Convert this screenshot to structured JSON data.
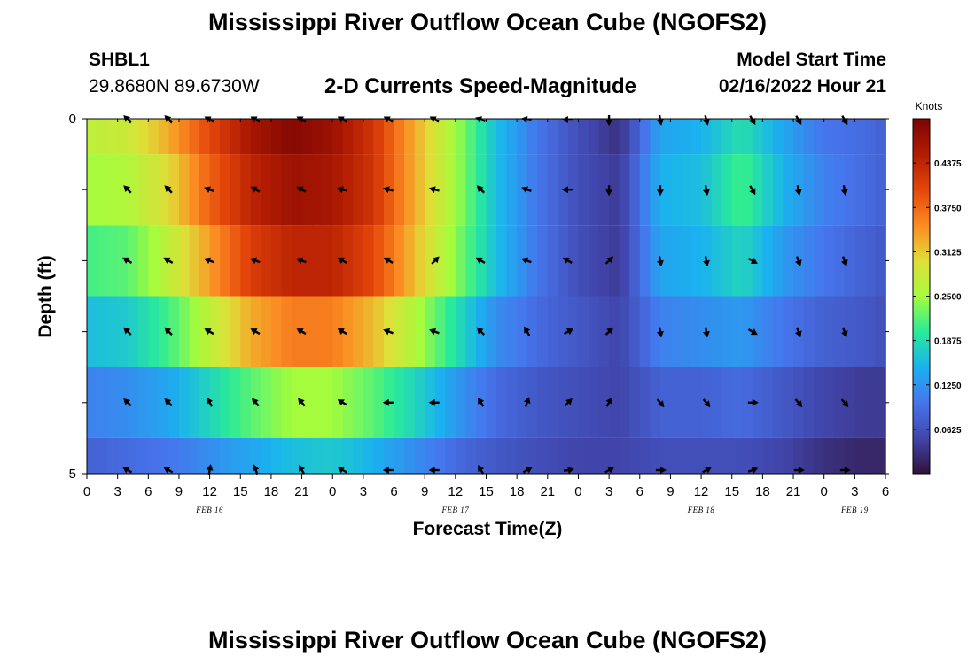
{
  "header": {
    "title": "Mississippi River Outflow Ocean Cube (NGOFS2)",
    "station_id": "SHBL1",
    "station_coords": "29.8680N  89.6730W",
    "subtitle": "2-D Currents Speed-Magnitude",
    "model_start_label": "Model Start Time",
    "model_start_value": "02/16/2022 Hour 21"
  },
  "footer": {
    "title": "Mississippi River Outflow Ocean Cube (NGOFS2)"
  },
  "chart_data": {
    "type": "heatmap",
    "xlabel": "Forecast Time(Z)",
    "ylabel": "Depth (ft)",
    "x_tick_labels": [
      "0",
      "3",
      "6",
      "9",
      "12",
      "15",
      "18",
      "21",
      "0",
      "3",
      "6",
      "9",
      "12",
      "15",
      "18",
      "21",
      "0",
      "3",
      "6",
      "9",
      "12",
      "15",
      "18",
      "21",
      "0",
      "3",
      "6"
    ],
    "x_tick_hours": [
      0,
      3,
      6,
      9,
      12,
      15,
      18,
      21,
      24,
      27,
      30,
      33,
      36,
      39,
      42,
      45,
      48,
      51,
      54,
      57,
      60,
      63,
      66,
      69,
      72,
      75,
      78
    ],
    "date_labels": [
      {
        "text": "FEB 16",
        "hour": 12
      },
      {
        "text": "FEB 17",
        "hour": 36
      },
      {
        "text": "FEB 18",
        "hour": 60
      },
      {
        "text": "FEB 19",
        "hour": 75
      }
    ],
    "xlim": [
      0,
      78
    ],
    "y_tick_labels": [
      "0",
      "5"
    ],
    "ylim": [
      0,
      5
    ],
    "colorbar": {
      "unit_label": "Knots",
      "range": [
        0,
        0.5
      ],
      "tick_labels": [
        "0.4375",
        "0.3750",
        "0.3125",
        "0.2500",
        "0.1875",
        "0.1250",
        "0.0625"
      ],
      "tick_values": [
        0.4375,
        0.375,
        0.3125,
        0.25,
        0.1875,
        0.125,
        0.0625
      ]
    },
    "depth_rows": [
      0,
      1,
      2,
      3,
      4,
      5
    ],
    "profile_hours": [
      0,
      4,
      8,
      12,
      16,
      20,
      24,
      28,
      32,
      36,
      40,
      44,
      48,
      52,
      56,
      60,
      64,
      68,
      72,
      76,
      78
    ],
    "speed_knots": [
      [
        0.27,
        0.28,
        0.33,
        0.4,
        0.46,
        0.49,
        0.47,
        0.42,
        0.33,
        0.25,
        0.16,
        0.1,
        0.06,
        0.03,
        0.14,
        0.15,
        0.19,
        0.14,
        0.1,
        0.09,
        0.08
      ],
      [
        0.25,
        0.26,
        0.3,
        0.38,
        0.44,
        0.47,
        0.46,
        0.42,
        0.33,
        0.25,
        0.16,
        0.1,
        0.06,
        0.04,
        0.15,
        0.16,
        0.21,
        0.15,
        0.11,
        0.09,
        0.08
      ],
      [
        0.21,
        0.22,
        0.27,
        0.34,
        0.41,
        0.44,
        0.44,
        0.4,
        0.32,
        0.24,
        0.16,
        0.1,
        0.06,
        0.04,
        0.14,
        0.15,
        0.18,
        0.13,
        0.1,
        0.08,
        0.07
      ],
      [
        0.16,
        0.17,
        0.21,
        0.27,
        0.33,
        0.36,
        0.36,
        0.32,
        0.26,
        0.19,
        0.12,
        0.09,
        0.07,
        0.05,
        0.11,
        0.12,
        0.13,
        0.1,
        0.08,
        0.07,
        0.06
      ],
      [
        0.11,
        0.12,
        0.14,
        0.18,
        0.22,
        0.25,
        0.25,
        0.22,
        0.18,
        0.13,
        0.09,
        0.07,
        0.06,
        0.05,
        0.08,
        0.08,
        0.09,
        0.07,
        0.05,
        0.04,
        0.04
      ],
      [
        0.08,
        0.09,
        0.1,
        0.12,
        0.14,
        0.16,
        0.17,
        0.15,
        0.12,
        0.09,
        0.07,
        0.06,
        0.05,
        0.05,
        0.06,
        0.06,
        0.06,
        0.05,
        0.03,
        0.02,
        0.02
      ]
    ],
    "vector_hours": [
      4,
      8,
      12,
      16.5,
      21,
      25,
      29.5,
      34,
      38.5,
      43,
      47,
      51,
      56,
      60.5,
      65,
      69.5,
      74
    ],
    "vector_directions_deg": [
      [
        315,
        315,
        300,
        300,
        300,
        300,
        300,
        300,
        290,
        280,
        270,
        180,
        170,
        165,
        150,
        150,
        150
      ],
      [
        315,
        315,
        290,
        300,
        300,
        285,
        285,
        285,
        315,
        290,
        270,
        180,
        180,
        170,
        150,
        170,
        170
      ],
      [
        300,
        300,
        290,
        290,
        290,
        300,
        300,
        45,
        300,
        290,
        300,
        45,
        170,
        170,
        120,
        160,
        160
      ],
      [
        315,
        315,
        300,
        300,
        300,
        300,
        290,
        290,
        315,
        330,
        60,
        45,
        170,
        170,
        120,
        160,
        160
      ],
      [
        315,
        315,
        330,
        320,
        320,
        300,
        270,
        270,
        330,
        20,
        45,
        30,
        140,
        140,
        90,
        140,
        140
      ],
      [
        300,
        300,
        10,
        340,
        330,
        300,
        270,
        270,
        330,
        60,
        80,
        60,
        90,
        60,
        70,
        90,
        90
      ]
    ]
  }
}
